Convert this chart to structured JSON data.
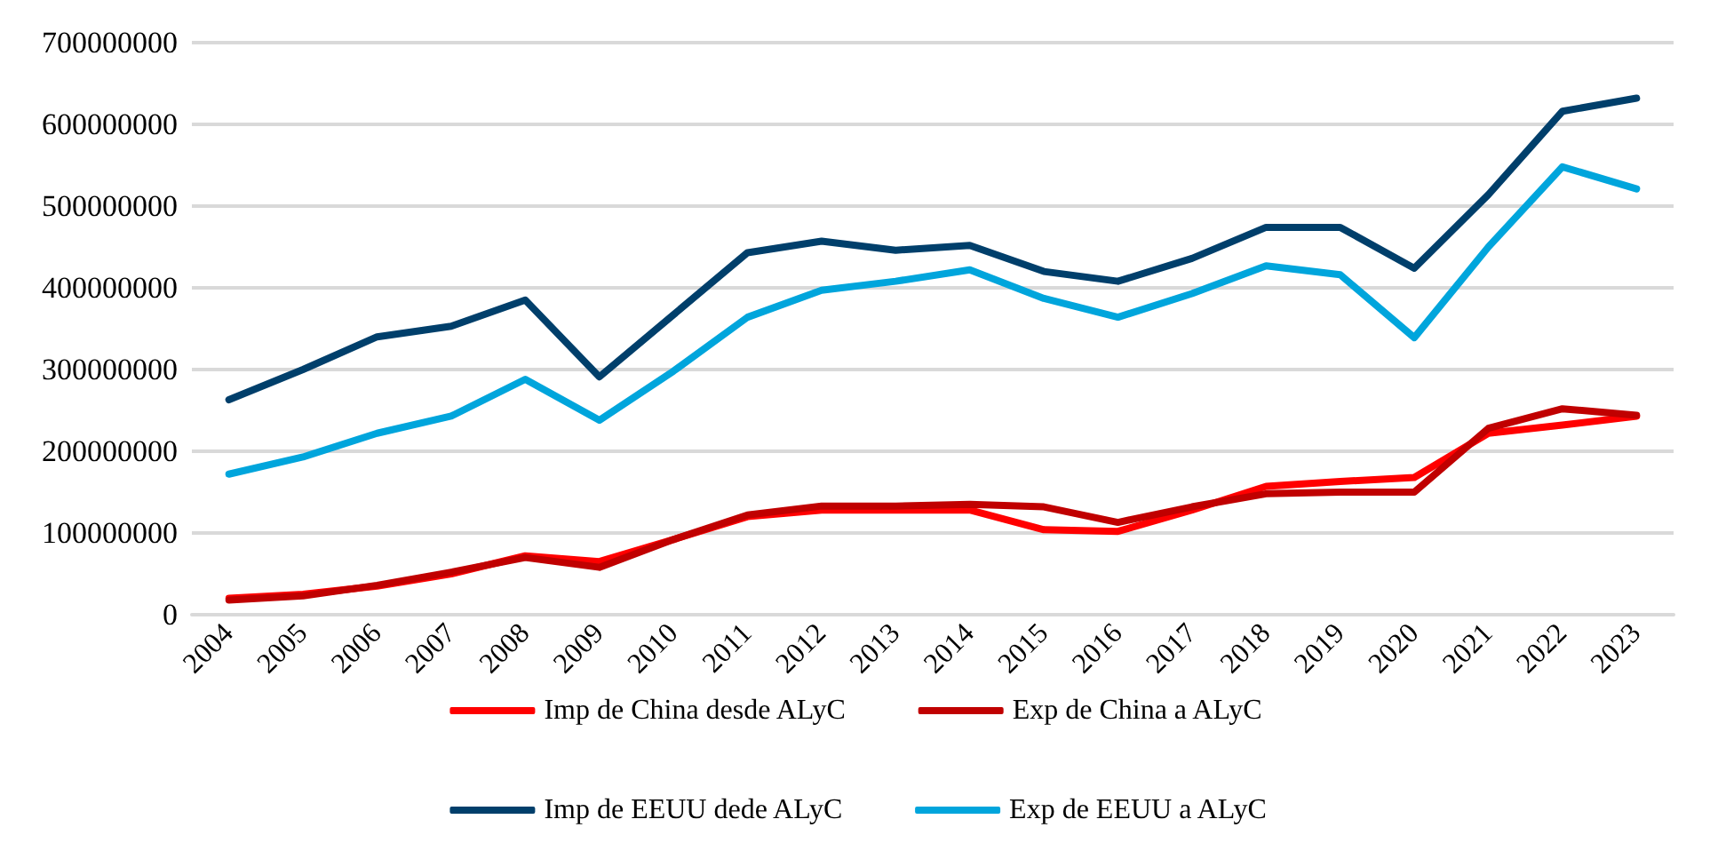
{
  "chart_data": {
    "type": "line",
    "categories": [
      "2004",
      "2005",
      "2006",
      "2007",
      "2008",
      "2009",
      "2010",
      "2011",
      "2012",
      "2013",
      "2014",
      "2015",
      "2016",
      "2017",
      "2018",
      "2019",
      "2020",
      "2021",
      "2022",
      "2023"
    ],
    "series": [
      {
        "name": "Imp de China desde ALyC",
        "color": "#ff0000",
        "values": [
          20000000,
          25000000,
          35000000,
          50000000,
          72000000,
          65000000,
          92000000,
          120000000,
          128000000,
          128000000,
          128000000,
          104000000,
          102000000,
          128000000,
          157000000,
          163000000,
          168000000,
          222000000,
          232000000,
          243000000
        ]
      },
      {
        "name": "Exp de China a ALyC",
        "color": "#c00000",
        "values": [
          18000000,
          23000000,
          36000000,
          52000000,
          70000000,
          58000000,
          92000000,
          122000000,
          133000000,
          133000000,
          135000000,
          132000000,
          113000000,
          132000000,
          148000000,
          150000000,
          150000000,
          228000000,
          252000000,
          244000000
        ]
      },
      {
        "name": "Imp de EEUU dede ALyC",
        "color": "#003f6b",
        "values": [
          263000000,
          300000000,
          340000000,
          353000000,
          385000000,
          291000000,
          367000000,
          443000000,
          457000000,
          446000000,
          452000000,
          420000000,
          408000000,
          436000000,
          474000000,
          474000000,
          424000000,
          514000000,
          616000000,
          632000000
        ]
      },
      {
        "name": "Exp de EEUU a ALyC",
        "color": "#00a5dc",
        "values": [
          172000000,
          193000000,
          222000000,
          243000000,
          288000000,
          238000000,
          298000000,
          364000000,
          397000000,
          408000000,
          422000000,
          387000000,
          364000000,
          393000000,
          427000000,
          416000000,
          339000000,
          450000000,
          548000000,
          521000000
        ]
      }
    ],
    "ylim": [
      0,
      700000000
    ],
    "yticks": [
      0,
      100000000,
      200000000,
      300000000,
      400000000,
      500000000,
      600000000,
      700000000
    ],
    "grid": "y",
    "legend": "bottom",
    "marker": "none",
    "line_style": "solid"
  }
}
